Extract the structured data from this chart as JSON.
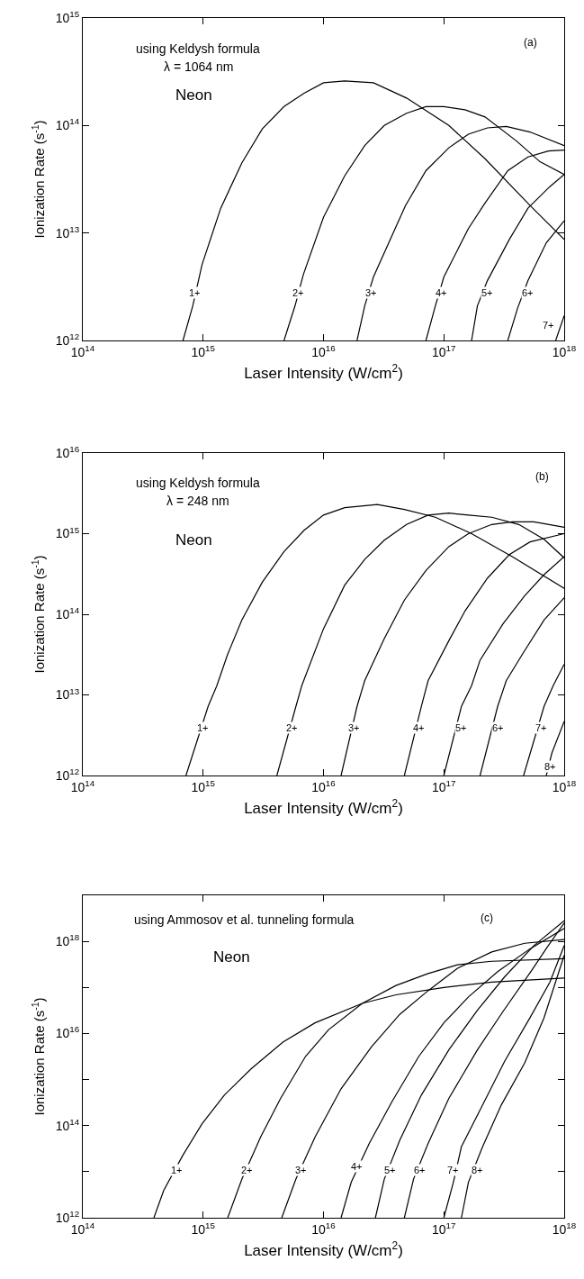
{
  "chart_data": [
    {
      "type": "line",
      "xlabel": "Laser Intensity (W/cm$^{2}$)",
      "ylabel": "Ionization Rate (s$^{-1}$)",
      "log": "xy",
      "marker": "none",
      "line_style": "solid",
      "xlim": [
        100000000000000.0,
        1e+18
      ],
      "xticks": [
        {
          "value": 100000000000000.0,
          "label": "10$^{14}$"
        },
        {
          "value": 1000000000000000.0,
          "label": "10$^{15}$"
        },
        {
          "value": 1e+16,
          "label": "10$^{16}$"
        },
        {
          "value": 1e+17,
          "label": "10$^{17}$"
        },
        {
          "value": 1e+18,
          "label": "10$^{18}$"
        }
      ],
      "ylim": [
        1000000000000.0,
        1000000000000000.0
      ],
      "yticks": [
        {
          "value": 1000000000000.0,
          "label": "10$^{12}$"
        },
        {
          "value": 10000000000000.0,
          "label": "10$^{13}$"
        },
        {
          "value": 100000000000000.0,
          "label": "10$^{14}$"
        },
        {
          "value": 1000000000000000.0,
          "label": "10$^{15}$"
        }
      ],
      "annotations": [
        "using Keldysh formula",
        "λ = 1064 nm",
        "Neon",
        "(a)",
        {
          "text": "1+",
          "x": 850000000000000.0,
          "y": 2800000000000.0
        },
        {
          "text": "2+",
          "x": 6200000000000000.0,
          "y": 2800000000000.0
        },
        {
          "text": "3+",
          "x": 2.5e+16,
          "y": 2800000000000.0
        },
        {
          "text": "4+",
          "x": 9.5e+16,
          "y": 2800000000000.0
        },
        {
          "text": "5+",
          "x": 2.3e+17,
          "y": 2800000000000.0
        },
        {
          "text": "6+",
          "x": 5e+17,
          "y": 2800000000000.0
        },
        {
          "text": "7+",
          "x": 7.4e+17,
          "y": 1400000000000.0
        }
      ],
      "series": [
        {
          "color": "#000000",
          "x": [
            680000000000000.0,
            820000000000000.0,
            980000000000000.0,
            1400000000000000.0,
            2100000000000000.0,
            3100000000000000.0,
            4700000000000000.0,
            6900000000000000.0,
            1e+16,
            1.5e+16,
            2.6e+16,
            4.9e+16,
            1.1e+17,
            2.2e+17,
            5.2e+17,
            1e+18
          ],
          "values": [
            1000000000000.0,
            2100000000000.0,
            5100000000000.0,
            17000000000000.0,
            45000000000000.0,
            93000000000000.0,
            150000000000000.0,
            200000000000000.0,
            250000000000000.0,
            260000000000000.0,
            250000000000000.0,
            180000000000000.0,
            100000000000000.0,
            49000000000000.0,
            18000000000000.0,
            8700000000000.0
          ]
        },
        {
          "color": "#000000",
          "x": [
            4700000000000000.0,
            5800000000000000.0,
            6800000000000000.0,
            1e+16,
            1.5e+16,
            2.2e+16,
            3.2e+16,
            4.9e+16,
            7.1e+16,
            1e+17,
            1.5e+17,
            2.2e+17,
            4e+17,
            6.3e+17,
            1e+18
          ],
          "values": [
            1000000000000.0,
            2100000000000.0,
            4100000000000.0,
            14000000000000.0,
            34000000000000.0,
            65000000000000.0,
            100000000000000.0,
            130000000000000.0,
            150000000000000.0,
            150000000000000.0,
            140000000000000.0,
            120000000000000.0,
            72000000000000.0,
            46000000000000.0,
            35000000000000.0
          ]
        },
        {
          "color": "#000000",
          "x": [
            1.9e+16,
            2.2e+16,
            2.6e+16,
            4.8e+16,
            7.1e+16,
            1.1e+17,
            1.6e+17,
            2.3e+17,
            3.3e+17,
            5.2e+17,
            1e+18
          ],
          "values": [
            1000000000000.0,
            2100000000000.0,
            3900000000000.0,
            18000000000000.0,
            38000000000000.0,
            62000000000000.0,
            83000000000000.0,
            95000000000000.0,
            98000000000000.0,
            87000000000000.0,
            65000000000000.0
          ]
        },
        {
          "color": "#000000",
          "x": [
            7.1e+16,
            8.5e+16,
            1e+17,
            1.6e+17,
            2.2e+17,
            3.4e+17,
            5e+17,
            7.4e+17,
            1e+18
          ],
          "values": [
            1000000000000.0,
            2100000000000.0,
            3900000000000.0,
            11000000000000.0,
            19000000000000.0,
            38000000000000.0,
            51000000000000.0,
            58000000000000.0,
            59000000000000.0
          ]
        },
        {
          "color": "#000000",
          "x": [
            1.7e+17,
            1.9e+17,
            2.3e+17,
            3.5e+17,
            5e+17,
            7.6e+17,
            1e+18
          ],
          "values": [
            1000000000000.0,
            2100000000000.0,
            3600000000000.0,
            8700000000000.0,
            17000000000000.0,
            27000000000000.0,
            35000000000000.0
          ]
        },
        {
          "color": "#000000",
          "x": [
            3.4e+17,
            4.1e+17,
            5e+17,
            7.1e+17,
            1e+18
          ],
          "values": [
            1000000000000.0,
            2000000000000.0,
            3600000000000.0,
            8100000000000.0,
            13000000000000.0
          ]
        },
        {
          "color": "#000000",
          "x": [
            8.5e+17,
            1e+18
          ],
          "values": [
            1000000000000.0,
            1700000000000.0
          ]
        }
      ]
    },
    {
      "type": "line",
      "xlabel": "Laser Intensity (W/cm$^{2}$)",
      "ylabel": "Ionization Rate (s$^{-1}$)",
      "log": "xy",
      "marker": "none",
      "line_style": "solid",
      "xlim": [
        100000000000000.0,
        1e+18
      ],
      "xticks": [
        {
          "value": 100000000000000.0,
          "label": "10$^{14}$"
        },
        {
          "value": 1000000000000000.0,
          "label": "10$^{15}$"
        },
        {
          "value": 1e+16,
          "label": "10$^{16}$"
        },
        {
          "value": 1e+17,
          "label": "10$^{17}$"
        },
        {
          "value": 1e+18,
          "label": "10$^{18}$"
        }
      ],
      "ylim": [
        1000000000000.0,
        1e+16
      ],
      "yticks": [
        {
          "value": 1000000000000.0,
          "label": "10$^{12}$"
        },
        {
          "value": 10000000000000.0,
          "label": "10$^{13}$"
        },
        {
          "value": 100000000000000.0,
          "label": "10$^{14}$"
        },
        {
          "value": 1000000000000000.0,
          "label": "10$^{15}$"
        },
        {
          "value": 1e+16,
          "label": "10$^{16}$"
        }
      ],
      "annotations": [
        "using Keldysh formula",
        "λ = 248 nm",
        "Neon",
        "(b)",
        {
          "text": "1+",
          "x": 1000000000000000.0,
          "y": 3900000000000.0
        },
        {
          "text": "2+",
          "x": 5500000000000000.0,
          "y": 3900000000000.0
        },
        {
          "text": "3+",
          "x": 1.8e+16,
          "y": 3900000000000.0
        },
        {
          "text": "4+",
          "x": 6.2e+16,
          "y": 3900000000000.0
        },
        {
          "text": "5+",
          "x": 1.4e+17,
          "y": 3900000000000.0
        },
        {
          "text": "6+",
          "x": 2.8e+17,
          "y": 3900000000000.0
        },
        {
          "text": "7+",
          "x": 6.5e+17,
          "y": 3900000000000.0
        },
        {
          "text": "8+",
          "x": 7.6e+17,
          "y": 1300000000000.0
        }
      ],
      "series": [
        {
          "color": "#000000",
          "x": [
            720000000000000.0,
            1100000000000000.0,
            1300000000000000.0,
            1600000000000000.0,
            2100000000000000.0,
            3100000000000000.0,
            4700000000000000.0,
            6900000000000000.0,
            1e+16,
            1.5e+16,
            2.8e+16,
            4.7e+16,
            8.5e+16,
            1.7e+17,
            3.7e+17,
            1e+18
          ],
          "values": [
            1000000000000.0,
            7200000000000.0,
            13000000000000.0,
            32000000000000.0,
            85000000000000.0,
            250000000000000.0,
            600000000000000.0,
            1100000000000000.0,
            1700000000000000.0,
            2100000000000000.0,
            2300000000000000.0,
            2000000000000000.0,
            1600000000000000.0,
            1000000000000000.0,
            520000000000000.0,
            210000000000000.0
          ]
        },
        {
          "color": "#000000",
          "x": [
            4100000000000000.0,
            5900000000000000.0,
            6600000000000000.0,
            1e+16,
            1.5e+16,
            2.2e+16,
            3.2e+16,
            4.9e+16,
            7.4e+16,
            1.1e+17,
            1.6e+17,
            2.5e+17,
            4.2e+17,
            6.8e+17,
            1e+18
          ],
          "values": [
            1000000000000.0,
            7200000000000.0,
            13000000000000.0,
            66000000000000.0,
            230000000000000.0,
            480000000000000.0,
            830000000000000.0,
            1300000000000000.0,
            1700000000000000.0,
            1800000000000000.0,
            1700000000000000.0,
            1600000000000000.0,
            1300000000000000.0,
            850000000000000.0,
            500000000000000.0
          ]
        },
        {
          "color": "#000000",
          "x": [
            1.4e+16,
            1.9e+16,
            2.2e+16,
            3.2e+16,
            4.7e+16,
            7.1e+16,
            1.1e+17,
            1.6e+17,
            2.5e+17,
            3.7e+17,
            5.6e+17,
            1e+18
          ],
          "values": [
            1000000000000.0,
            7200000000000.0,
            15000000000000.0,
            50000000000000.0,
            150000000000000.0,
            350000000000000.0,
            690000000000000.0,
            1000000000000000.0,
            1300000000000000.0,
            1400000000000000.0,
            1400000000000000.0,
            1200000000000000.0
          ]
        },
        {
          "color": "#000000",
          "x": [
            4.7e+16,
            6.5e+16,
            7.4e+16,
            1.1e+17,
            1.5e+17,
            2.3e+17,
            3.5e+17,
            5.2e+17,
            1e+18
          ],
          "values": [
            1000000000000.0,
            7200000000000.0,
            15000000000000.0,
            47000000000000.0,
            110000000000000.0,
            280000000000000.0,
            550000000000000.0,
            790000000000000.0,
            1000000000000000.0
          ]
        },
        {
          "color": "#000000",
          "x": [
            1e+17,
            1.4e+17,
            1.7e+17,
            2e+17,
            3.1e+17,
            4.7e+17,
            6.8e+17,
            1e+18
          ],
          "values": [
            1000000000000.0,
            7200000000000.0,
            13000000000000.0,
            27000000000000.0,
            76000000000000.0,
            170000000000000.0,
            310000000000000.0,
            520000000000000.0
          ]
        },
        {
          "color": "#000000",
          "x": [
            2e+17,
            2.8e+17,
            3.3e+17,
            4.5e+17,
            6.8e+17,
            1e+18
          ],
          "values": [
            1000000000000.0,
            7200000000000.0,
            15000000000000.0,
            32000000000000.0,
            85000000000000.0,
            160000000000000.0
          ]
        },
        {
          "color": "#000000",
          "x": [
            4.6e+17,
            6.8e+17,
            8.1e+17,
            1e+18
          ],
          "values": [
            1000000000000.0,
            7200000000000.0,
            13000000000000.0,
            24000000000000.0
          ]
        },
        {
          "color": "#000000",
          "x": [
            7.1e+17,
            7.9e+17,
            1e+18
          ],
          "values": [
            1000000000000.0,
            1900000000000.0,
            4700000000000.0
          ]
        }
      ]
    },
    {
      "type": "line",
      "xlabel": "Laser Intensity (W/cm$^{2}$)",
      "ylabel": "Ionization Rate (s$^{-1}$)",
      "log": "xy",
      "marker": "none",
      "line_style": "solid",
      "xlim": [
        100000000000000.0,
        1e+18
      ],
      "xticks": [
        {
          "value": 100000000000000.0,
          "label": "10$^{14}$"
        },
        {
          "value": 1000000000000000.0,
          "label": "10$^{15}$"
        },
        {
          "value": 1e+16,
          "label": "10$^{16}$"
        },
        {
          "value": 1e+17,
          "label": "10$^{17}$"
        },
        {
          "value": 1e+18,
          "label": "10$^{18}$"
        }
      ],
      "ylim": [
        1000000000000.0,
        1e+19
      ],
      "yticks": [
        {
          "value": 1000000000000.0,
          "label": "10$^{12}$"
        },
        {
          "value": 10000000000000.0,
          "label": null
        },
        {
          "value": 100000000000000.0,
          "label": "10$^{14}$"
        },
        {
          "value": 1000000000000000.0,
          "label": null
        },
        {
          "value": 1e+16,
          "label": "10$^{16}$"
        },
        {
          "value": 1e+17,
          "label": null
        },
        {
          "value": 1e+18,
          "label": "10$^{18}$"
        },
        {
          "value": 1e+19,
          "label": null
        }
      ],
      "annotations": [
        "using Ammosov et al. tunneling formula",
        "Neon",
        "(c)",
        {
          "text": "1+",
          "x": 600000000000000.0,
          "y": 11000000000000.0
        },
        {
          "text": "2+",
          "x": 2300000000000000.0,
          "y": 11000000000000.0
        },
        {
          "text": "3+",
          "x": 6500000000000000.0,
          "y": 11000000000000.0
        },
        {
          "text": "4+",
          "x": 1.9e+16,
          "y": 13000000000000.0
        },
        {
          "text": "5+",
          "x": 3.6e+16,
          "y": 11000000000000.0
        },
        {
          "text": "6+",
          "x": 6.3e+16,
          "y": 11000000000000.0
        },
        {
          "text": "7+",
          "x": 1.2e+17,
          "y": 11000000000000.0
        },
        {
          "text": "8+",
          "x": 1.9e+17,
          "y": 11000000000000.0
        }
      ],
      "series": [
        {
          "color": "#000000",
          "x": [
            390000000000000.0,
            470000000000000.0,
            680000000000000.0,
            980000000000000.0,
            1500000000000000.0,
            2500000000000000.0,
            4600000000000000.0,
            8500000000000000.0,
            2.1e+16,
            4e+16,
            1e+17,
            2.5e+17,
            1e+18
          ],
          "values": [
            1000000000000.0,
            3900000000000.0,
            23000000000000.0,
            110000000000000.0,
            460000000000000.0,
            1700000000000000.0,
            6500000000000000.0,
            1.7e+16,
            4.5e+16,
            6.9e+16,
            1e+17,
            1.3e+17,
            1.6e+17
          ]
        },
        {
          "color": "#000000",
          "x": [
            1600000000000000.0,
            2100000000000000.0,
            3000000000000000.0,
            4400000000000000.0,
            7100000000000000.0,
            1.1e+16,
            2.1e+16,
            4e+16,
            7.4e+16,
            1.3e+17,
            2.5e+17,
            1e+18
          ],
          "values": [
            1000000000000.0,
            6900000000000.0,
            56000000000000.0,
            390000000000000.0,
            3200000000000000.0,
            1.2e+16,
            4.5e+16,
            1.1e+17,
            2e+17,
            3.1e+17,
            3.7e+17,
            4.2e+17
          ]
        },
        {
          "color": "#000000",
          "x": [
            4500000000000000.0,
            5900000000000000.0,
            8500000000000000.0,
            1.4e+16,
            2.5e+16,
            4.3e+16,
            7.4e+16,
            1.3e+17,
            2.5e+17,
            4.7e+17,
            1e+18
          ],
          "values": [
            1000000000000.0,
            6900000000000.0,
            56000000000000.0,
            630000000000000.0,
            5100000000000000.0,
            2.6e+16,
            8.5e+16,
            2.6e+17,
            5.9e+17,
            9.1e+17,
            1.1e+18
          ]
        },
        {
          "color": "#000000",
          "x": [
            1.4e+16,
            1.7e+16,
            2.4e+16,
            3.7e+16,
            6.2e+16,
            1e+17,
            1.6e+17,
            2.8e+17,
            5.2e+17,
            1e+18
          ],
          "values": [
            1000000000000.0,
            5900000000000.0,
            41000000000000.0,
            330000000000000.0,
            3200000000000000.0,
            1.7e+16,
            6.2e+16,
            2.2e+17,
            6.9e+17,
            1.9e+18
          ]
        },
        {
          "color": "#000000",
          "x": [
            2.7e+16,
            3.2e+16,
            4.3e+16,
            6.5e+16,
            1.1e+17,
            1.9e+17,
            3.2e+17,
            5.6e+17,
            1e+18
          ],
          "values": [
            1000000000000.0,
            6900000000000.0,
            48000000000000.0,
            460000000000000.0,
            4400000000000000.0,
            3.2e+16,
            1.7e+17,
            8.1e+17,
            2.8e+18
          ]
        },
        {
          "color": "#000000",
          "x": [
            4.7e+16,
            5.6e+16,
            7.4e+16,
            1.1e+17,
            1.9e+17,
            3.1e+17,
            5.4e+17,
            7.2e+17,
            1e+18
          ],
          "values": [
            1000000000000.0,
            6900000000000.0,
            41000000000000.0,
            390000000000000.0,
            4400000000000000.0,
            3e+16,
            2.4e+17,
            7.4e+17,
            2.5e+18
          ]
        },
        {
          "color": "#000000",
          "x": [
            1e+17,
            1.2e+17,
            1.4e+17,
            2.1e+17,
            3.2e+17,
            5.2e+17,
            7.6e+17,
            1e+18
          ],
          "values": [
            1000000000000.0,
            5900000000000.0,
            35000000000000.0,
            280000000000000.0,
            2500000000000000.0,
            2.2e+16,
            1.3e+17,
            8.1e+17
          ]
        },
        {
          "color": "#000000",
          "x": [
            1.4e+17,
            1.6e+17,
            2.1e+17,
            3e+17,
            4.7e+17,
            6.8e+17,
            1e+18
          ],
          "values": [
            1000000000000.0,
            5900000000000.0,
            35000000000000.0,
            280000000000000.0,
            2300000000000000.0,
            2.2e+16,
            5e+17
          ]
        }
      ]
    }
  ]
}
